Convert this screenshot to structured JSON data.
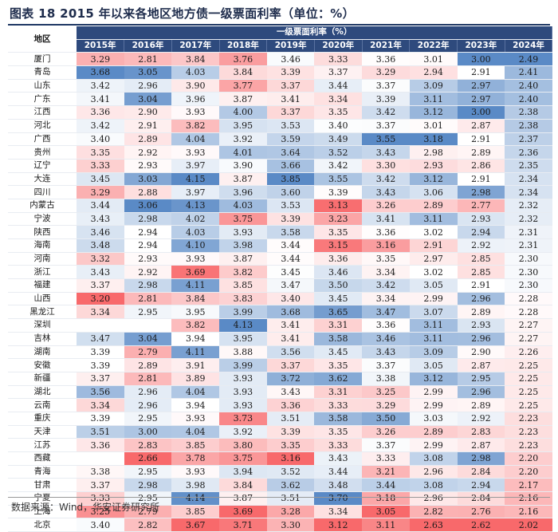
{
  "title": "图表 18 2015 年以来各地区地方债一级票面利率（单位：%）",
  "region_header": "地区",
  "group_header": "一级票面利率（%）",
  "years": [
    "2015年",
    "2016年",
    "2017年",
    "2018年",
    "2019年",
    "2020年",
    "2021年",
    "2022年",
    "2023年",
    "2024年"
  ],
  "rows": [
    {
      "region": "厦门",
      "values": [
        "3.29",
        "2.81",
        "3.84",
        "3.76",
        "3.46",
        "3.33",
        "3.36",
        "3.01",
        "3.00",
        "2.49"
      ]
    },
    {
      "region": "青岛",
      "values": [
        "3.68",
        "3.05",
        "4.03",
        "3.84",
        "3.39",
        "3.37",
        "3.29",
        "2.94",
        "2.91",
        "2.41"
      ]
    },
    {
      "region": "山东",
      "values": [
        "3.42",
        "2.96",
        "3.90",
        "3.77",
        "3.37",
        "3.44",
        "3.37",
        "3.09",
        "2.97",
        "2.40"
      ]
    },
    {
      "region": "广东",
      "values": [
        "3.41",
        "3.04",
        "3.96",
        "3.87",
        "3.41",
        "3.34",
        "3.39",
        "3.11",
        "2.97",
        "2.40"
      ]
    },
    {
      "region": "江西",
      "values": [
        "3.36",
        "2.90",
        "3.93",
        "4.00",
        "3.37",
        "3.35",
        "3.42",
        "3.12",
        "3.00",
        "2.38"
      ]
    },
    {
      "region": "河北",
      "values": [
        "3.42",
        "2.91",
        "3.82",
        "3.95",
        "3.53",
        "3.40",
        "3.37",
        "3.01",
        "2.87",
        "2.38"
      ]
    },
    {
      "region": "广西",
      "values": [
        "3.40",
        "2.89",
        "4.04",
        "3.92",
        "3.59",
        "3.49",
        "3.55",
        "3.18",
        "2.91",
        "2.37"
      ]
    },
    {
      "region": "贵州",
      "values": [
        "3.35",
        "2.92",
        "3.93",
        "4.01",
        "3.64",
        "3.52",
        "3.43",
        "2.98",
        "2.89",
        "2.36"
      ]
    },
    {
      "region": "辽宁",
      "values": [
        "3.33",
        "2.93",
        "3.97",
        "3.90",
        "3.66",
        "3.42",
        "3.30",
        "2.93",
        "2.86",
        "2.35"
      ]
    },
    {
      "region": "大连",
      "values": [
        "3.45",
        "3.03",
        "4.15",
        "3.87",
        "3.85",
        "3.55",
        "3.42",
        "3.12",
        "2.91",
        "2.34"
      ]
    },
    {
      "region": "四川",
      "values": [
        "3.29",
        "2.88",
        "3.97",
        "3.96",
        "3.60",
        "3.39",
        "3.43",
        "3.06",
        "2.98",
        "2.34"
      ]
    },
    {
      "region": "内蒙古",
      "values": [
        "3.44",
        "3.06",
        "4.13",
        "4.03",
        "3.53",
        "3.13",
        "3.26",
        "2.89",
        "2.77",
        "2.32"
      ]
    },
    {
      "region": "宁波",
      "values": [
        "3.43",
        "2.98",
        "4.02",
        "3.75",
        "3.39",
        "3.23",
        "3.41",
        "3.11",
        "2.93",
        "2.32"
      ]
    },
    {
      "region": "陕西",
      "values": [
        "3.46",
        "2.94",
        "4.03",
        "3.93",
        "3.58",
        "3.35",
        "3.36",
        "3.02",
        "2.94",
        "2.31"
      ]
    },
    {
      "region": "海南",
      "values": [
        "3.48",
        "2.94",
        "4.10",
        "3.98",
        "3.44",
        "3.15",
        "3.16",
        "2.91",
        "2.92",
        "2.31"
      ]
    },
    {
      "region": "河南",
      "values": [
        "3.32",
        "2.93",
        "3.93",
        "3.87",
        "3.44",
        "3.36",
        "3.35",
        "2.97",
        "2.85",
        "2.30"
      ]
    },
    {
      "region": "浙江",
      "values": [
        "3.43",
        "2.92",
        "3.69",
        "3.82",
        "3.45",
        "3.46",
        "3.34",
        "3.02",
        "2.85",
        "2.30"
      ]
    },
    {
      "region": "福建",
      "values": [
        "3.37",
        "2.98",
        "4.11",
        "3.85",
        "3.47",
        "3.50",
        "3.42",
        "3.05",
        "2.91",
        "2.30"
      ]
    },
    {
      "region": "山西",
      "values": [
        "3.20",
        "2.81",
        "3.84",
        "3.83",
        "3.40",
        "3.45",
        "3.34",
        "2.99",
        "2.96",
        "2.28"
      ]
    },
    {
      "region": "黑龙江",
      "values": [
        "3.34",
        "2.95",
        "3.95",
        "3.99",
        "3.68",
        "3.65",
        "3.47",
        "3.07",
        "2.89",
        "2.28"
      ]
    },
    {
      "region": "深圳",
      "values": [
        "",
        "",
        "3.82",
        "4.13",
        "3.41",
        "3.31",
        "3.36",
        "3.11",
        "2.93",
        "2.27"
      ]
    },
    {
      "region": "吉林",
      "values": [
        "3.47",
        "3.04",
        "3.94",
        "3.95",
        "3.41",
        "3.58",
        "3.46",
        "3.11",
        "2.96",
        "2.27"
      ]
    },
    {
      "region": "湖南",
      "values": [
        "3.39",
        "2.79",
        "4.11",
        "3.88",
        "3.56",
        "3.45",
        "3.43",
        "3.09",
        "2.90",
        "2.26"
      ]
    },
    {
      "region": "安徽",
      "values": [
        "3.39",
        "2.89",
        "3.91",
        "3.99",
        "3.37",
        "3.35",
        "3.37",
        "3.05",
        "2.87",
        "2.25"
      ]
    },
    {
      "region": "新疆",
      "values": [
        "3.37",
        "2.81",
        "3.89",
        "3.93",
        "3.72",
        "3.62",
        "3.38",
        "3.12",
        "2.95",
        "2.25"
      ]
    },
    {
      "region": "湖北",
      "values": [
        "3.56",
        "2.96",
        "4.04",
        "3.93",
        "3.43",
        "3.31",
        "3.25",
        "2.99",
        "2.96",
        "2.25"
      ]
    },
    {
      "region": "云南",
      "values": [
        "3.34",
        "2.96",
        "3.94",
        "3.93",
        "3.36",
        "3.33",
        "3.29",
        "2.99",
        "2.89",
        "2.25"
      ]
    },
    {
      "region": "重庆",
      "values": [
        "3.39",
        "2.95",
        "3.93",
        "3.73",
        "3.51",
        "3.58",
        "3.50",
        "3.03",
        "2.92",
        "2.23"
      ]
    },
    {
      "region": "天津",
      "values": [
        "3.51",
        "3.00",
        "4.04",
        "3.92",
        "3.39",
        "3.35",
        "3.26",
        "2.89",
        "2.83",
        "2.23"
      ]
    },
    {
      "region": "江苏",
      "values": [
        "3.36",
        "2.83",
        "3.85",
        "3.80",
        "3.35",
        "3.33",
        "3.37",
        "2.99",
        "2.87",
        "2.23"
      ]
    },
    {
      "region": "西藏",
      "values": [
        "",
        "2.66",
        "3.78",
        "3.75",
        "3.16",
        "3.43",
        "3.33",
        "3.08",
        "2.98",
        "2.20"
      ]
    },
    {
      "region": "青海",
      "values": [
        "3.38",
        "2.95",
        "3.93",
        "3.94",
        "3.52",
        "3.44",
        "3.21",
        "2.96",
        "2.84",
        "2.20"
      ]
    },
    {
      "region": "甘肃",
      "values": [
        "3.37",
        "2.98",
        "3.98",
        "3.84",
        "3.62",
        "3.48",
        "3.44",
        "3.08",
        "2.94",
        "2.17"
      ]
    },
    {
      "region": "宁夏",
      "values": [
        "3.33",
        "2.95",
        "4.14",
        "3.87",
        "3.51",
        "3.70",
        "3.18",
        "2.96",
        "2.84",
        "2.16"
      ]
    },
    {
      "region": "上海",
      "values": [
        "3.25",
        "2.79",
        "3.85",
        "3.69",
        "3.28",
        "3.34",
        "3.05",
        "2.82",
        "2.76",
        "2.16"
      ]
    },
    {
      "region": "北京",
      "values": [
        "3.40",
        "2.82",
        "3.67",
        "3.71",
        "3.30",
        "3.12",
        "3.11",
        "2.63",
        "2.62",
        "2.02"
      ]
    }
  ],
  "colors": {
    "low": "#f8696b",
    "mid": "#ffffff",
    "high": "#5a8ac6",
    "header_bg": "#2e4a7d"
  },
  "source": "数据来源：Wind，华安证券研究所"
}
